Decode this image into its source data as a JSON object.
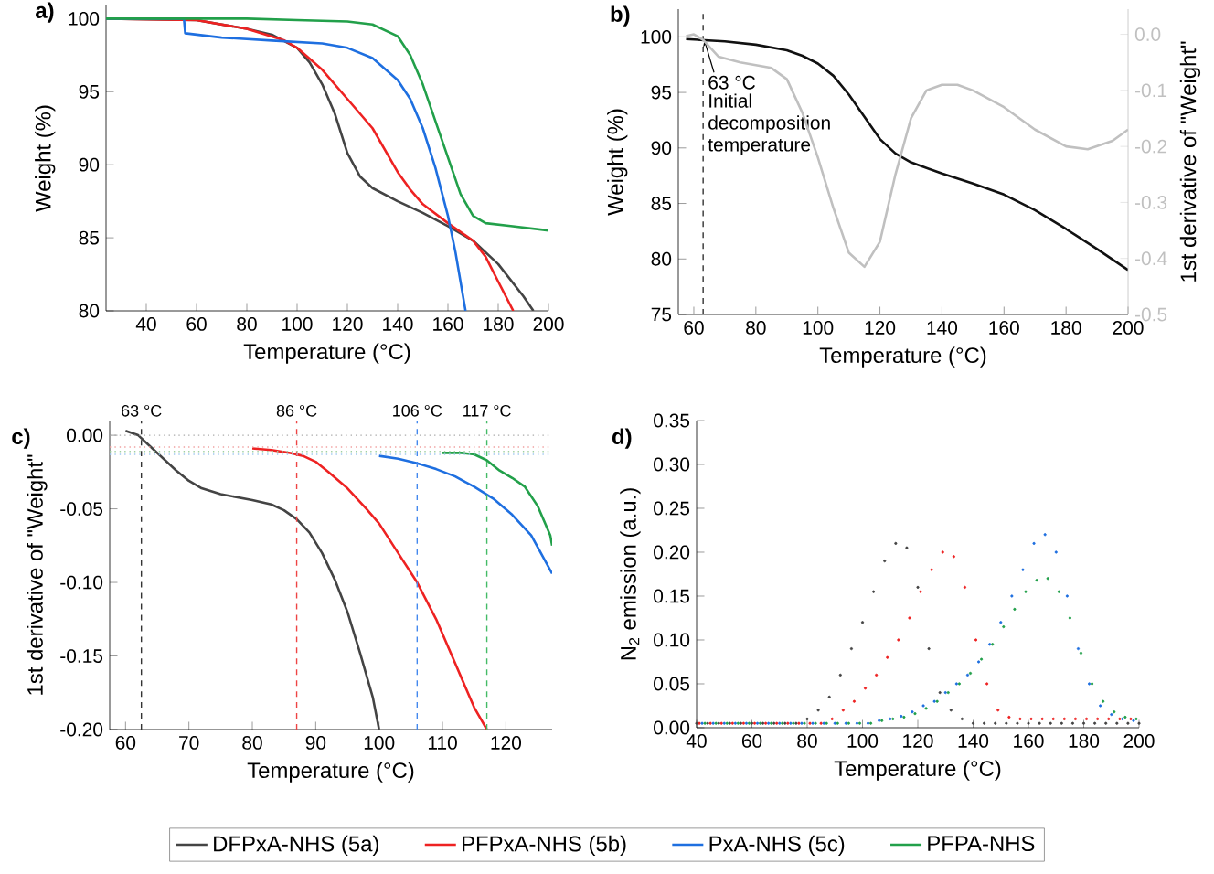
{
  "chart_data": [
    {
      "type": "line",
      "title": "a)",
      "xlabel": "Temperature (°C)",
      "ylabel": "Weight (%)",
      "xlim": [
        24,
        200
      ],
      "ylim": [
        80,
        100.9
      ],
      "xticks": [
        40,
        60,
        80,
        100,
        120,
        140,
        160,
        180,
        200
      ],
      "yticks": [
        80,
        85,
        90,
        95,
        100
      ],
      "legend": "bottom",
      "series": [
        {
          "name": "DFPxA-NHS (5a)",
          "color": "#444444",
          "x": [
            24,
            60,
            80,
            90,
            100,
            105,
            110,
            115,
            120,
            125,
            130,
            140,
            150,
            160,
            170,
            180,
            190,
            194
          ],
          "values": [
            100,
            99.9,
            99.3,
            98.9,
            98.0,
            97.0,
            95.5,
            93.5,
            90.8,
            89.2,
            88.4,
            87.5,
            86.7,
            85.8,
            84.8,
            83.2,
            81.0,
            80
          ]
        },
        {
          "name": "PFPxA-NHS (5b)",
          "color": "#ee2222",
          "x": [
            24,
            60,
            80,
            95,
            100,
            110,
            120,
            130,
            140,
            145,
            150,
            160,
            170,
            175,
            180,
            186
          ],
          "values": [
            100,
            99.9,
            99.3,
            98.5,
            98.0,
            96.5,
            94.5,
            92.5,
            89.5,
            88.3,
            87.3,
            86.0,
            84.8,
            83.7,
            82.0,
            80
          ]
        },
        {
          "name": "PxA-NHS (5c)",
          "color": "#1e6fe0",
          "x": [
            24,
            55,
            55.5,
            70,
            90,
            110,
            120,
            130,
            140,
            145,
            150,
            155,
            160,
            163,
            167
          ],
          "values": [
            100,
            100,
            99.0,
            98.7,
            98.5,
            98.3,
            98.0,
            97.3,
            95.8,
            94.5,
            92.5,
            89.8,
            86.5,
            84.0,
            80
          ]
        },
        {
          "name": "PFPA-NHS",
          "color": "#22a04a",
          "x": [
            24,
            80,
            100,
            120,
            130,
            140,
            145,
            150,
            155,
            160,
            165,
            170,
            175,
            185,
            200
          ],
          "values": [
            100,
            100,
            99.9,
            99.8,
            99.6,
            98.8,
            97.5,
            95.5,
            93.0,
            90.5,
            88.0,
            86.5,
            86.0,
            85.8,
            85.5
          ]
        }
      ]
    },
    {
      "type": "line",
      "title": "b)",
      "xlabel": "Temperature (°C)",
      "ylabel": "Weight (%)",
      "y2label": "1st derivative of \"Weight\"",
      "xlim": [
        55,
        200
      ],
      "ylim": [
        75,
        102.5
      ],
      "y2lim": [
        -0.5,
        0.045
      ],
      "xticks": [
        60,
        80,
        100,
        120,
        140,
        160,
        180,
        200
      ],
      "yticks": [
        75,
        80,
        85,
        90,
        95,
        100
      ],
      "y2ticks": [
        {
          "value": -0.5,
          "label": "-0.5"
        },
        {
          "value": -0.4,
          "label": "-0.4"
        },
        {
          "value": -0.3,
          "label": "-0.3"
        },
        {
          "value": -0.2,
          "label": "-0.2"
        },
        {
          "value": -0.1,
          "label": "-0.1"
        },
        {
          "value": 0,
          "label": "0.0"
        }
      ],
      "series": [
        {
          "color": "#111111",
          "x": [
            57.5,
            70,
            80,
            90,
            95,
            100,
            105,
            110,
            115,
            120,
            125,
            130,
            140,
            150,
            160,
            170,
            180,
            190,
            200
          ],
          "values": [
            99.8,
            99.6,
            99.3,
            98.8,
            98.3,
            97.6,
            96.5,
            94.8,
            92.8,
            90.8,
            89.5,
            88.7,
            87.7,
            86.8,
            85.8,
            84.4,
            82.7,
            80.9,
            79.0
          ]
        },
        {
          "color": "#c0c0c0",
          "axis": "y2",
          "x": [
            57.5,
            60,
            63,
            68,
            75,
            85,
            90,
            95,
            100,
            105,
            110,
            115,
            120,
            125,
            130,
            135,
            140,
            145,
            150,
            160,
            170,
            180,
            187,
            195,
            200
          ],
          "values": [
            -0.003,
            0.0,
            -0.01,
            -0.04,
            -0.05,
            -0.06,
            -0.08,
            -0.14,
            -0.22,
            -0.31,
            -0.39,
            -0.415,
            -0.37,
            -0.25,
            -0.15,
            -0.1,
            -0.09,
            -0.09,
            -0.1,
            -0.13,
            -0.17,
            -0.2,
            -0.205,
            -0.19,
            -0.17
          ]
        }
      ],
      "ref_lines": [
        {
          "axis": "x",
          "value": 63,
          "color": "#333333",
          "line_style": "dashed"
        }
      ],
      "annotations": [
        {
          "text": "63 °C",
          "x": 63,
          "y": 100
        },
        "Initial decomposition temperature"
      ]
    },
    {
      "type": "line",
      "title": "c)",
      "xlabel": "Temperature (°C)",
      "ylabel": "1st derivative of \"Weight\"",
      "xlim": [
        57.5,
        127.3
      ],
      "ylim": [
        -0.2,
        0.01
      ],
      "xticks": [
        60,
        70,
        80,
        90,
        100,
        110,
        120
      ],
      "yticks": [
        {
          "value": -0.2,
          "label": "-0.20"
        },
        {
          "value": -0.15,
          "label": "-0.15"
        },
        {
          "value": -0.1,
          "label": "-0.10"
        },
        {
          "value": -0.05,
          "label": "-0.05"
        },
        {
          "value": 0,
          "label": "0.00"
        }
      ],
      "series": [
        {
          "color": "#444444",
          "x": [
            60,
            62,
            64,
            66,
            68,
            70,
            72,
            75,
            80,
            83,
            85,
            87,
            89,
            91,
            93,
            95,
            97,
            99,
            100
          ],
          "values": [
            0.003,
            0.0,
            -0.008,
            -0.016,
            -0.024,
            -0.031,
            -0.036,
            -0.04,
            -0.044,
            -0.047,
            -0.051,
            -0.057,
            -0.066,
            -0.08,
            -0.098,
            -0.12,
            -0.148,
            -0.178,
            -0.2
          ]
        },
        {
          "color": "#ee2222",
          "x": [
            80,
            83,
            86,
            88,
            90,
            92,
            95,
            98,
            100,
            103,
            106,
            109,
            112,
            115,
            117
          ],
          "values": [
            -0.009,
            -0.01,
            -0.012,
            -0.014,
            -0.018,
            -0.025,
            -0.036,
            -0.05,
            -0.06,
            -0.08,
            -0.1,
            -0.125,
            -0.155,
            -0.185,
            -0.2
          ]
        },
        {
          "color": "#1e6fe0",
          "x": [
            100,
            103,
            106,
            109,
            112,
            115,
            118,
            121,
            124,
            127.3
          ],
          "values": [
            -0.014,
            -0.016,
            -0.019,
            -0.023,
            -0.028,
            -0.035,
            -0.043,
            -0.054,
            -0.068,
            -0.094
          ]
        },
        {
          "color": "#22a04a",
          "x": [
            110,
            113,
            115,
            117,
            119,
            121,
            123,
            125,
            127,
            127.3
          ],
          "values": [
            -0.012,
            -0.012,
            -0.013,
            -0.017,
            -0.024,
            -0.029,
            -0.035,
            -0.048,
            -0.068,
            -0.075
          ]
        }
      ],
      "ref_lines": [
        {
          "axis": "x",
          "value": 62.5,
          "label": "63 °C",
          "color": "#333333",
          "line_style": "dashed"
        },
        {
          "axis": "x",
          "value": 87,
          "label": "86 °C",
          "color": "#ee4444",
          "line_style": "dashed"
        },
        {
          "axis": "x",
          "value": 106,
          "label": "106 °C",
          "color": "#4488ee",
          "line_style": "dashed"
        },
        {
          "axis": "x",
          "value": 117,
          "label": "117 °C",
          "color": "#44bb66",
          "line_style": "dashed"
        },
        {
          "axis": "y",
          "value": 0,
          "color": "#aaaaaa",
          "line_style": "dotted"
        },
        {
          "axis": "y",
          "value": -0.008,
          "color": "#f0a0a0",
          "line_style": "dotted"
        },
        {
          "axis": "y",
          "value": -0.011,
          "color": "#a0d0a0",
          "line_style": "dotted"
        },
        {
          "axis": "y",
          "value": -0.013,
          "color": "#a0c8f0",
          "line_style": "dotted"
        }
      ]
    },
    {
      "type": "scatter",
      "title": "d)",
      "xlabel": "Temperature (°C)",
      "ylabel": "N$_{2}$ emission (a.u.)",
      "xlim": [
        40,
        200
      ],
      "ylim": [
        0,
        0.35
      ],
      "marker": "circle",
      "xticks": [
        40,
        60,
        80,
        100,
        120,
        140,
        160,
        180,
        200
      ],
      "yticks": [
        {
          "value": 0,
          "label": "0.00"
        },
        {
          "value": 0.05,
          "label": "0.05"
        },
        {
          "value": 0.1,
          "label": "0.10"
        },
        {
          "value": 0.15,
          "label": "0.15"
        },
        {
          "value": 0.2,
          "label": "0.20"
        },
        {
          "value": 0.25,
          "label": "0.25"
        },
        {
          "value": 0.3,
          "label": "0.30"
        },
        {
          "value": 0.35,
          "label": "0.35"
        }
      ],
      "series": [
        {
          "color": "#444444",
          "x": [
            40,
            44,
            48,
            52,
            56,
            60,
            64,
            68,
            72,
            76,
            80,
            84,
            88,
            92,
            96,
            100,
            104,
            108,
            112,
            116,
            120,
            124,
            128,
            132,
            136,
            140,
            144,
            148,
            152,
            156,
            160,
            164,
            168,
            172,
            176,
            180,
            184,
            188,
            192,
            196,
            200
          ],
          "values": [
            0.005,
            0.005,
            0.005,
            0.005,
            0.005,
            0.005,
            0.005,
            0.005,
            0.005,
            0.005,
            0.01,
            0.02,
            0.035,
            0.06,
            0.09,
            0.12,
            0.155,
            0.19,
            0.21,
            0.205,
            0.16,
            0.09,
            0.04,
            0.02,
            0.01,
            0.005,
            0.005,
            0.005,
            0.005,
            0.005,
            0.005,
            0.005,
            0.005,
            0.005,
            0.005,
            0.005,
            0.005,
            0.005,
            0.005,
            0.005,
            0.005
          ]
        },
        {
          "color": "#ee2222",
          "x": [
            41,
            45,
            49,
            53,
            57,
            61,
            65,
            69,
            73,
            77,
            81,
            85,
            89,
            93,
            97,
            101,
            105,
            109,
            113,
            117,
            121,
            125,
            129,
            133,
            137,
            141,
            145,
            149,
            153,
            157,
            161,
            165,
            169,
            173,
            177,
            181,
            185,
            189,
            193,
            197
          ],
          "values": [
            0.005,
            0.005,
            0.005,
            0.005,
            0.005,
            0.005,
            0.005,
            0.005,
            0.005,
            0.005,
            0.005,
            0.005,
            0.01,
            0.02,
            0.03,
            0.045,
            0.06,
            0.08,
            0.1,
            0.125,
            0.155,
            0.18,
            0.2,
            0.195,
            0.16,
            0.1,
            0.05,
            0.02,
            0.012,
            0.01,
            0.01,
            0.01,
            0.01,
            0.01,
            0.01,
            0.01,
            0.01,
            0.01,
            0.01,
            0.01
          ]
        },
        {
          "color": "#1e6fe0",
          "x": [
            42,
            46,
            50,
            54,
            58,
            62,
            66,
            70,
            74,
            78,
            82,
            86,
            90,
            94,
            98,
            102,
            106,
            110,
            114,
            118,
            122,
            126,
            130,
            134,
            138,
            142,
            146,
            150,
            154,
            158,
            162,
            166,
            170,
            174,
            178,
            182,
            186,
            190,
            194,
            198
          ],
          "values": [
            0.005,
            0.005,
            0.005,
            0.005,
            0.005,
            0.005,
            0.005,
            0.005,
            0.005,
            0.005,
            0.005,
            0.005,
            0.005,
            0.005,
            0.005,
            0.005,
            0.008,
            0.01,
            0.013,
            0.018,
            0.025,
            0.03,
            0.04,
            0.05,
            0.06,
            0.075,
            0.095,
            0.12,
            0.15,
            0.18,
            0.21,
            0.22,
            0.2,
            0.15,
            0.09,
            0.05,
            0.025,
            0.015,
            0.01,
            0.008
          ]
        },
        {
          "color": "#22a04a",
          "x": [
            43,
            47,
            51,
            55,
            59,
            63,
            67,
            71,
            75,
            79,
            83,
            87,
            91,
            95,
            99,
            103,
            107,
            111,
            115,
            119,
            123,
            127,
            131,
            135,
            139,
            143,
            147,
            151,
            155,
            159,
            163,
            167,
            171,
            175,
            179,
            183,
            187,
            191,
            195,
            199
          ],
          "values": [
            0.005,
            0.005,
            0.005,
            0.005,
            0.005,
            0.005,
            0.005,
            0.005,
            0.005,
            0.005,
            0.005,
            0.005,
            0.005,
            0.005,
            0.005,
            0.005,
            0.008,
            0.01,
            0.012,
            0.016,
            0.022,
            0.03,
            0.04,
            0.05,
            0.062,
            0.078,
            0.095,
            0.115,
            0.135,
            0.155,
            0.168,
            0.17,
            0.155,
            0.125,
            0.085,
            0.05,
            0.03,
            0.018,
            0.012,
            0.01
          ]
        }
      ]
    }
  ]
}
